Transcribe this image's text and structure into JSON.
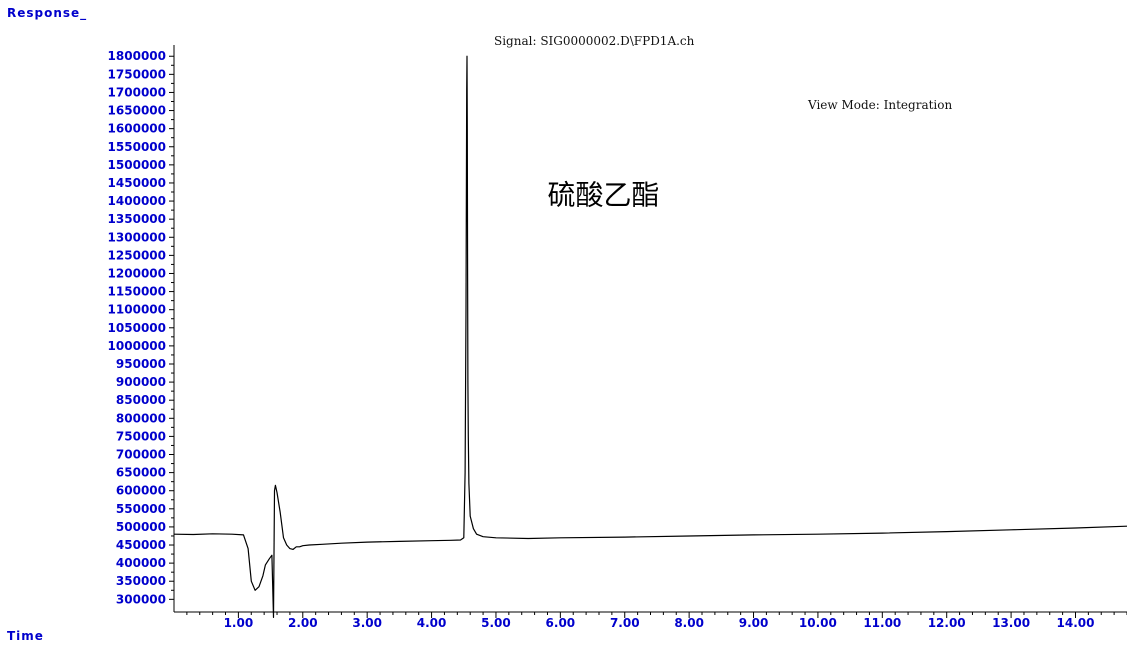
{
  "header": {
    "y_axis_label": "Response_",
    "signal": "Signal: SIG0000002.D\\FPD1A.ch",
    "view_mode": "View Mode: Integration"
  },
  "footer": {
    "x_axis_label": "Time"
  },
  "colors": {
    "axis_text": "#0000cc",
    "trace": "#000000",
    "background": "#ffffff"
  },
  "chart_data": {
    "type": "line",
    "title": "",
    "xlabel": "Time",
    "ylabel": "Response_",
    "xlim": [
      0.0,
      14.8
    ],
    "ylim": [
      265000,
      1820000
    ],
    "x_ticks": [
      1.0,
      2.0,
      3.0,
      4.0,
      5.0,
      6.0,
      7.0,
      8.0,
      9.0,
      10.0,
      11.0,
      12.0,
      13.0,
      14.0
    ],
    "x_tick_labels": [
      "1.00",
      "2.00",
      "3.00",
      "4.00",
      "5.00",
      "6.00",
      "7.00",
      "8.00",
      "9.00",
      "10.00",
      "11.00",
      "12.00",
      "13.00",
      "14.00"
    ],
    "y_ticks": [
      300000,
      350000,
      400000,
      450000,
      500000,
      550000,
      600000,
      650000,
      700000,
      750000,
      800000,
      850000,
      900000,
      950000,
      1000000,
      1050000,
      1100000,
      1150000,
      1200000,
      1250000,
      1300000,
      1350000,
      1400000,
      1450000,
      1500000,
      1550000,
      1600000,
      1650000,
      1700000,
      1750000,
      1800000
    ],
    "y_tick_labels": [
      "300000",
      "350000",
      "400000",
      "450000",
      "500000",
      "550000",
      "600000",
      "650000",
      "700000",
      "750000",
      "800000",
      "850000",
      "900000",
      "950000",
      "1000000",
      "1050000",
      "1100000",
      "1150000",
      "1200000",
      "1250000",
      "1300000",
      "1350000",
      "1400000",
      "1450000",
      "1500000",
      "1550000",
      "1600000",
      "1650000",
      "1700000",
      "1750000",
      "1800000"
    ],
    "grid": false,
    "annotations": [
      {
        "text": "硫酸乙酯",
        "x": 5.8,
        "y": 1390000
      }
    ],
    "series": [
      {
        "x": [
          0.0,
          0.3,
          0.6,
          0.9,
          1.08,
          1.15,
          1.2,
          1.26,
          1.32,
          1.38,
          1.42,
          1.48,
          1.52,
          1.545,
          1.56,
          1.575,
          1.6,
          1.65,
          1.7,
          1.75,
          1.8,
          1.85,
          1.9,
          1.95,
          2.0,
          2.1,
          2.3,
          2.6,
          3.0,
          3.5,
          4.0,
          4.3,
          4.45,
          4.5,
          4.52,
          4.535,
          4.545,
          4.55,
          4.555,
          4.56,
          4.565,
          4.57,
          4.58,
          4.6,
          4.65,
          4.7,
          4.8,
          5.0,
          5.5,
          6.0,
          7.0,
          8.0,
          9.0,
          10.0,
          11.0,
          12.0,
          13.0,
          14.0,
          14.8
        ],
        "y": [
          480000,
          479000,
          481000,
          480000,
          478000,
          440000,
          350000,
          325000,
          335000,
          365000,
          395000,
          412000,
          422000,
          250000,
          600000,
          615000,
          595000,
          540000,
          470000,
          450000,
          440000,
          438000,
          445000,
          445000,
          448000,
          450000,
          452000,
          455000,
          458000,
          460000,
          462000,
          463000,
          464000,
          470000,
          650000,
          1100000,
          1705000,
          1800000,
          1600000,
          1200000,
          900000,
          750000,
          620000,
          530000,
          495000,
          480000,
          473000,
          470000,
          468000,
          470000,
          472000,
          475000,
          478000,
          480000,
          483000,
          487000,
          492000,
          497000,
          502000
        ]
      }
    ]
  }
}
